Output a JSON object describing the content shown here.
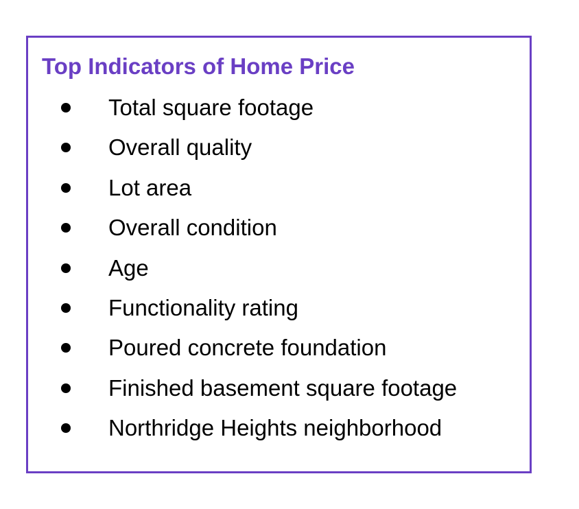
{
  "card": {
    "title": "Top Indicators of Home Price",
    "accent_color": "#6a3fc4",
    "items": [
      {
        "label": "Total square footage"
      },
      {
        "label": "Overall quality"
      },
      {
        "label": "Lot area"
      },
      {
        "label": "Overall condition"
      },
      {
        "label": "Age"
      },
      {
        "label": "Functionality rating"
      },
      {
        "label": "Poured concrete foundation"
      },
      {
        "label": "Finished basement square footage"
      },
      {
        "label": "Northridge Heights neighborhood"
      }
    ]
  }
}
